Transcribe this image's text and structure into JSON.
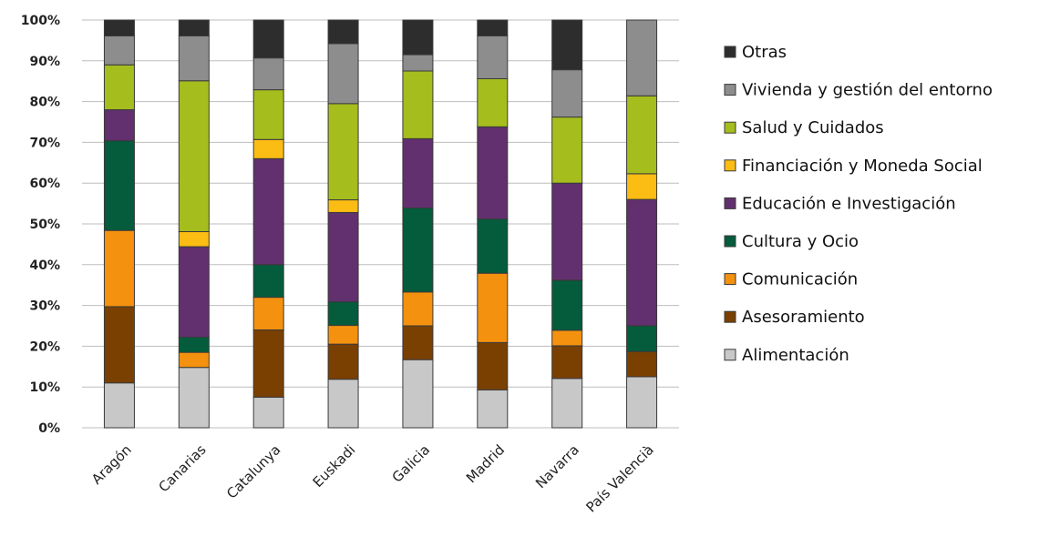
{
  "chart_data": {
    "type": "bar",
    "stacked": true,
    "percent": true,
    "categories": [
      "Aragón",
      "Canarias",
      "Catalunya",
      "Euskadi",
      "Galicia",
      "Madrid",
      "Navarra",
      "País Valencià"
    ],
    "y_ticks": [
      "0%",
      "10%",
      "20%",
      "30%",
      "40%",
      "50%",
      "60%",
      "70%",
      "80%",
      "90%",
      "100%"
    ],
    "ylim": [
      0,
      100
    ],
    "grid": true,
    "legend_position": "right",
    "series": [
      {
        "name": "Alimentación",
        "color": "#c8c8c8",
        "values": [
          11,
          14.8,
          7.5,
          11.9,
          16.7,
          9.3,
          12.1,
          12.5
        ]
      },
      {
        "name": "Asesoramiento",
        "color": "#7a4002",
        "values": [
          18.7,
          0,
          16.5,
          8.6,
          8.3,
          11.6,
          8.0,
          6.2
        ]
      },
      {
        "name": "Comunicación",
        "color": "#f4910e",
        "values": [
          18.7,
          3.7,
          8.0,
          4.6,
          8.3,
          17.0,
          3.8,
          0
        ]
      },
      {
        "name": "Cultura y Ocio",
        "color": "#045c3c",
        "values": [
          22.0,
          3.7,
          8.0,
          5.8,
          20.6,
          13.3,
          12.3,
          6.3
        ]
      },
      {
        "name": "Educación e Investigación",
        "color": "#62306e",
        "values": [
          7.6,
          22.2,
          26.0,
          21.9,
          17.0,
          22.6,
          23.8,
          31.0
        ]
      },
      {
        "name": "Financiación y Moneda Social",
        "color": "#fbbd14",
        "values": [
          0,
          3.7,
          4.7,
          3.1,
          0,
          0,
          0,
          6.3
        ]
      },
      {
        "name": "Salud y Cuidados",
        "color": "#a6bd1e",
        "values": [
          11.0,
          37.0,
          12.2,
          23.6,
          16.6,
          11.8,
          16.2,
          19.1
        ]
      },
      {
        "name": "Vivienda y gestión del entorno",
        "color": "#8d8d8d",
        "values": [
          7.1,
          11.0,
          7.8,
          14.7,
          4.0,
          10.5,
          11.6,
          18.6
        ]
      },
      {
        "name": "Otras",
        "color": "#2d2d2d",
        "values": [
          3.9,
          3.9,
          9.3,
          5.8,
          8.5,
          3.9,
          12.2,
          0
        ]
      }
    ]
  }
}
